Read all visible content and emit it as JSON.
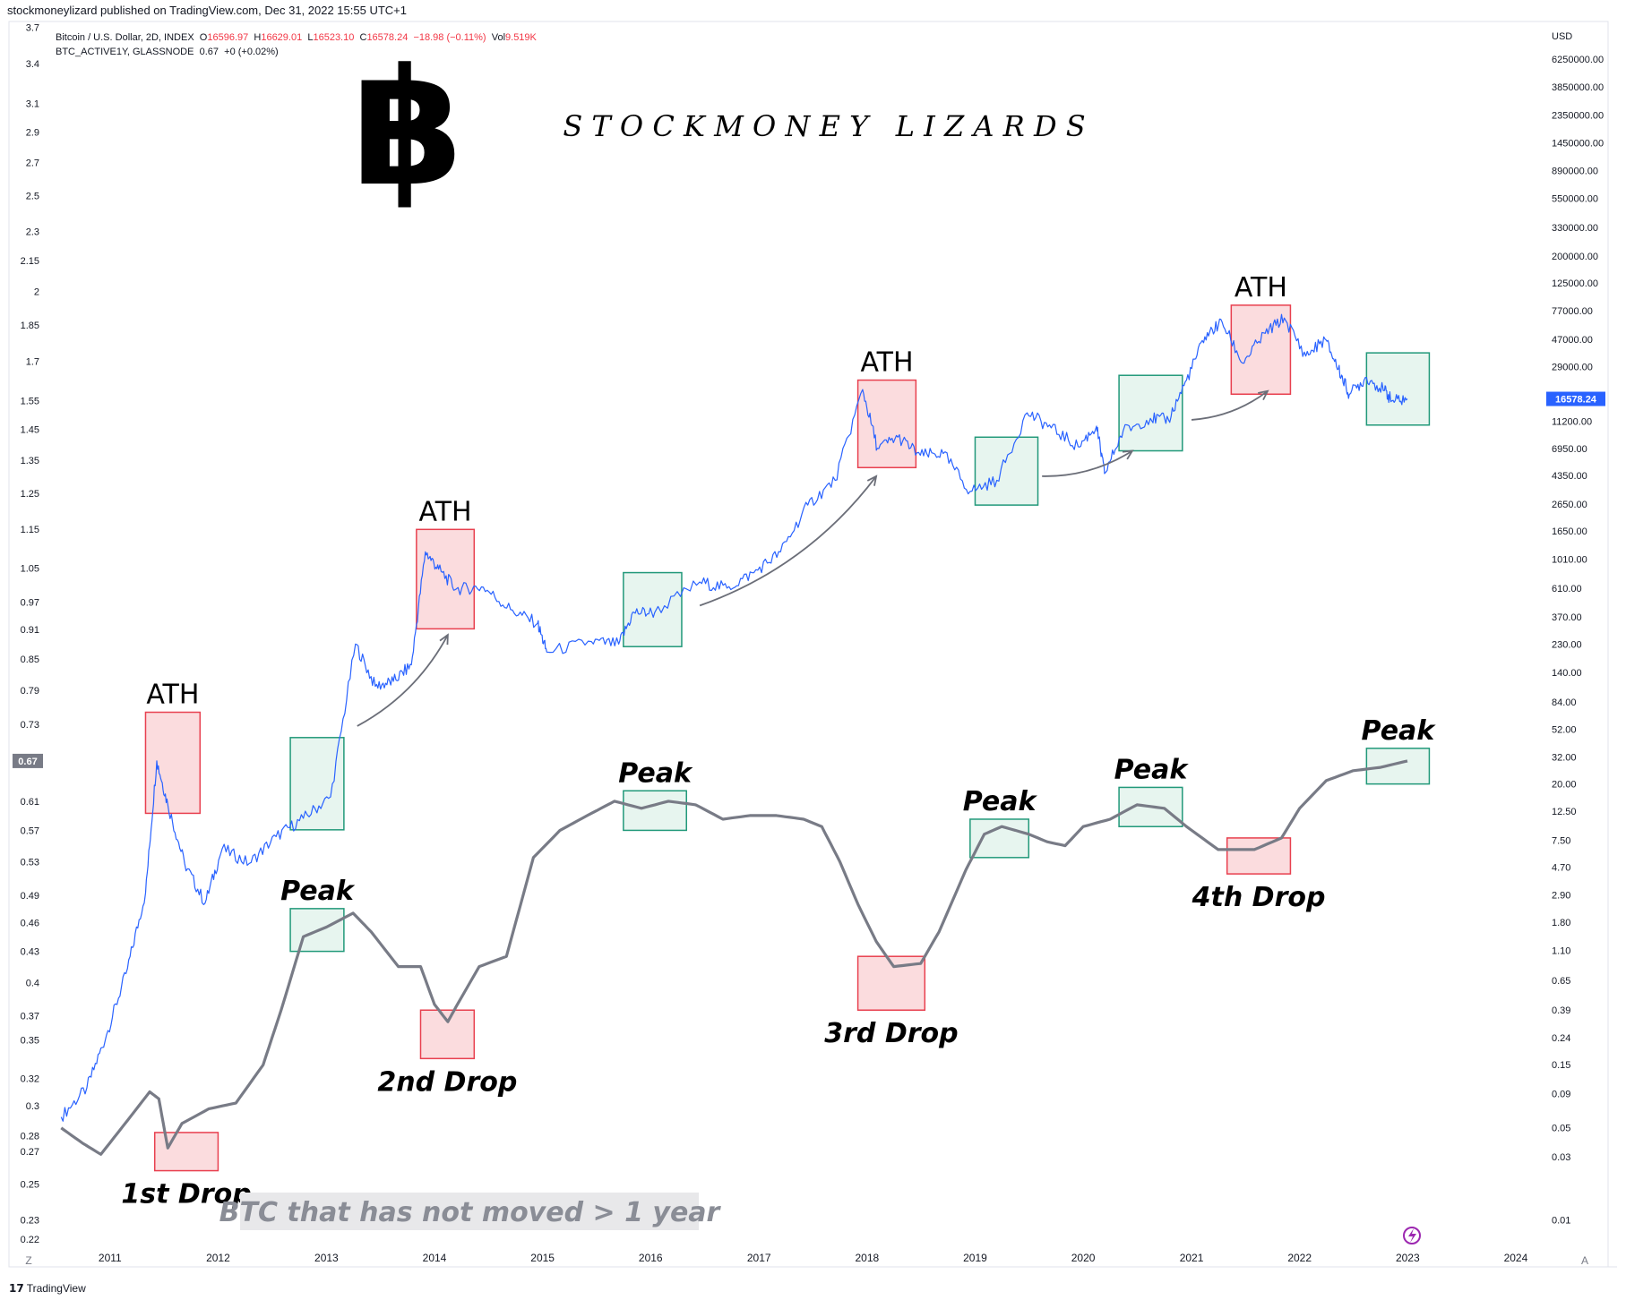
{
  "publisher_line": "stockmoneylizard published on TradingView.com, Dec 31, 2022 15:55 UTC+1",
  "legend": {
    "symbol": "Bitcoin / U.S. Dollar, 2D, INDEX",
    "ohlc": {
      "o_label": "O",
      "o": "16596.97",
      "h_label": "H",
      "h": "16629.01",
      "l_label": "L",
      "l": "16523.10",
      "c_label": "C",
      "c": "16578.24",
      "chg": "−18.98 (−0.11%)",
      "vol_label": "Vol",
      "vol": "9.519K"
    },
    "indicator": "BTC_ACTIVE1Y, GLASSNODE",
    "indicator_value": "0.67",
    "indicator_chg": "+0 (+0.02%)"
  },
  "watermark": {
    "logo_glyph": "฿",
    "text": "S T O C K M O N E Y   L I Z A R D S"
  },
  "footer": {
    "brand": "TradingView"
  },
  "colors": {
    "price": "#2962ff",
    "indicator": "#787b86",
    "red_box_fill": "#f9d0d3",
    "red_box_stroke": "#e8404f",
    "green_box_fill": "#dff2ea",
    "green_box_stroke": "#22997a",
    "price_tag": "#2962ff",
    "indicator_tag": "#787b86"
  },
  "chart_data": {
    "type": "line",
    "x_axis": {
      "type": "date",
      "ticks": [
        "2011",
        "2012",
        "2013",
        "2014",
        "2015",
        "2016",
        "2017",
        "2018",
        "2019",
        "2020",
        "2021",
        "2022",
        "2023",
        "2024"
      ]
    },
    "left_axis": {
      "scale": "log",
      "currency": "",
      "ticks": [
        "3.7",
        "3.4",
        "3.1",
        "2.9",
        "2.7",
        "2.5",
        "2.3",
        "2.15",
        "2",
        "1.85",
        "1.7",
        "1.55",
        "1.45",
        "1.35",
        "1.25",
        "1.15",
        "1.05",
        "0.97",
        "0.91",
        "0.85",
        "0.79",
        "0.73",
        "0.67",
        "0.61",
        "0.57",
        "0.53",
        "0.49",
        "0.46",
        "0.43",
        "0.4",
        "0.37",
        "0.35",
        "0.32",
        "0.3",
        "0.28",
        "0.27",
        "0.25",
        "0.23",
        "0.22"
      ],
      "current_tag": "0.67"
    },
    "right_axis": {
      "scale": "log",
      "currency": "USD",
      "ticks": [
        "6250000.00",
        "3850000.00",
        "2350000.00",
        "1450000.00",
        "890000.00",
        "550000.00",
        "330000.00",
        "200000.00",
        "125000.00",
        "77000.00",
        "47000.00",
        "29000.00",
        "11200.00",
        "6950.00",
        "4350.00",
        "2650.00",
        "1650.00",
        "1010.00",
        "610.00",
        "370.00",
        "230.00",
        "140.00",
        "84.00",
        "52.00",
        "32.00",
        "20.00",
        "12.50",
        "7.50",
        "4.70",
        "2.90",
        "1.80",
        "1.10",
        "0.65",
        "0.39",
        "0.24",
        "0.15",
        "0.09",
        "0.05",
        "0.03",
        "0.01"
      ],
      "current_tag": "16578.24"
    },
    "series": [
      {
        "axis": "right",
        "points": [
          [
            "2010-07-20",
            0.06
          ],
          [
            "2010-10-15",
            0.1
          ],
          [
            "2010-12-20",
            0.25
          ],
          [
            "2011-03-01",
            0.8
          ],
          [
            "2011-05-01",
            3.0
          ],
          [
            "2011-06-08",
            30.0
          ],
          [
            "2011-07-15",
            14.0
          ],
          [
            "2011-09-10",
            5.0
          ],
          [
            "2011-11-18",
            2.5
          ],
          [
            "2012-01-15",
            6.5
          ],
          [
            "2012-04-15",
            5.0
          ],
          [
            "2012-07-15",
            8.0
          ],
          [
            "2012-10-15",
            11.0
          ],
          [
            "2013-01-15",
            16.0
          ],
          [
            "2013-04-09",
            230.0
          ],
          [
            "2013-06-15",
            110.0
          ],
          [
            "2013-08-15",
            120.0
          ],
          [
            "2013-10-15",
            160.0
          ],
          [
            "2013-12-01",
            1150.0
          ],
          [
            "2014-01-15",
            850.0
          ],
          [
            "2014-03-15",
            600.0
          ],
          [
            "2014-06-15",
            620.0
          ],
          [
            "2014-09-15",
            420.0
          ],
          [
            "2014-12-15",
            330.0
          ],
          [
            "2015-01-15",
            200.0
          ],
          [
            "2015-06-15",
            240.0
          ],
          [
            "2015-09-15",
            230.0
          ],
          [
            "2015-11-05",
            400.0
          ],
          [
            "2016-01-15",
            400.0
          ],
          [
            "2016-06-15",
            680.0
          ],
          [
            "2016-09-15",
            610.0
          ],
          [
            "2016-12-15",
            800.0
          ],
          [
            "2017-03-15",
            1150.0
          ],
          [
            "2017-06-15",
            2600.0
          ],
          [
            "2017-09-15",
            4000.0
          ],
          [
            "2017-12-17",
            19500.0
          ],
          [
            "2018-02-05",
            7000.0
          ],
          [
            "2018-04-15",
            8500.0
          ],
          [
            "2018-06-30",
            6200.0
          ],
          [
            "2018-09-15",
            6400.0
          ],
          [
            "2018-12-15",
            3300.0
          ],
          [
            "2019-03-15",
            4000.0
          ],
          [
            "2019-06-26",
            13000.0
          ],
          [
            "2019-09-15",
            10000.0
          ],
          [
            "2019-12-15",
            7200.0
          ],
          [
            "2020-02-15",
            10300.0
          ],
          [
            "2020-03-13",
            4500.0
          ],
          [
            "2020-05-15",
            9500.0
          ],
          [
            "2020-08-15",
            11800.0
          ],
          [
            "2020-10-15",
            11500.0
          ],
          [
            "2020-12-15",
            23000.0
          ],
          [
            "2021-02-15",
            49000.0
          ],
          [
            "2021-04-14",
            63500.0
          ],
          [
            "2021-06-22",
            31000.0
          ],
          [
            "2021-09-07",
            52000.0
          ],
          [
            "2021-11-10",
            68000.0
          ],
          [
            "2022-01-22",
            35000.0
          ],
          [
            "2022-03-28",
            47000.0
          ],
          [
            "2022-05-12",
            28000.0
          ],
          [
            "2022-06-18",
            18000.0
          ],
          [
            "2022-08-15",
            24000.0
          ],
          [
            "2022-10-15",
            19200.0
          ],
          [
            "2022-11-09",
            16000.0
          ],
          [
            "2022-12-31",
            16578.24
          ]
        ]
      },
      {
        "axis": "left",
        "points": [
          [
            "2010-07-20",
            0.285
          ],
          [
            "2010-10-01",
            0.275
          ],
          [
            "2010-12-01",
            0.268
          ],
          [
            "2011-03-01",
            0.29
          ],
          [
            "2011-05-15",
            0.31
          ],
          [
            "2011-06-15",
            0.305
          ],
          [
            "2011-07-15",
            0.272
          ],
          [
            "2011-09-01",
            0.288
          ],
          [
            "2011-12-01",
            0.298
          ],
          [
            "2012-03-01",
            0.302
          ],
          [
            "2012-06-01",
            0.33
          ],
          [
            "2012-08-01",
            0.375
          ],
          [
            "2012-10-15",
            0.445
          ],
          [
            "2013-01-01",
            0.455
          ],
          [
            "2013-04-01",
            0.47
          ],
          [
            "2013-06-01",
            0.45
          ],
          [
            "2013-09-01",
            0.415
          ],
          [
            "2013-11-15",
            0.415
          ],
          [
            "2014-01-01",
            0.38
          ],
          [
            "2014-02-15",
            0.365
          ],
          [
            "2014-03-15",
            0.378
          ],
          [
            "2014-06-01",
            0.415
          ],
          [
            "2014-09-01",
            0.425
          ],
          [
            "2014-12-01",
            0.535
          ],
          [
            "2015-03-01",
            0.57
          ],
          [
            "2015-06-01",
            0.59
          ],
          [
            "2015-09-01",
            0.61
          ],
          [
            "2015-12-01",
            0.6
          ],
          [
            "2016-03-01",
            0.61
          ],
          [
            "2016-06-01",
            0.605
          ],
          [
            "2016-09-01",
            0.585
          ],
          [
            "2016-12-01",
            0.59
          ],
          [
            "2017-03-01",
            0.59
          ],
          [
            "2017-06-01",
            0.585
          ],
          [
            "2017-08-01",
            0.575
          ],
          [
            "2017-10-01",
            0.53
          ],
          [
            "2017-12-01",
            0.48
          ],
          [
            "2018-02-01",
            0.44
          ],
          [
            "2018-04-01",
            0.415
          ],
          [
            "2018-07-01",
            0.418
          ],
          [
            "2018-09-01",
            0.45
          ],
          [
            "2018-12-01",
            0.52
          ],
          [
            "2019-02-01",
            0.565
          ],
          [
            "2019-04-01",
            0.575
          ],
          [
            "2019-07-01",
            0.565
          ],
          [
            "2019-09-01",
            0.555
          ],
          [
            "2019-11-01",
            0.55
          ],
          [
            "2020-01-01",
            0.575
          ],
          [
            "2020-04-01",
            0.585
          ],
          [
            "2020-07-01",
            0.605
          ],
          [
            "2020-10-01",
            0.6
          ],
          [
            "2020-12-15",
            0.575
          ],
          [
            "2021-04-01",
            0.545
          ],
          [
            "2021-08-01",
            0.545
          ],
          [
            "2021-11-01",
            0.56
          ],
          [
            "2022-01-01",
            0.6
          ],
          [
            "2022-04-01",
            0.64
          ],
          [
            "2022-07-01",
            0.655
          ],
          [
            "2022-10-01",
            0.66
          ],
          [
            "2022-12-31",
            0.67
          ]
        ]
      }
    ],
    "annotations": [
      {
        "label": "ATH",
        "x": [
          "2011-05-01",
          "2011-11-01"
        ],
        "axis": "right",
        "y": [
          12,
          70
        ],
        "box": "red",
        "label_pos": "above"
      },
      {
        "label": "ATH",
        "x": [
          "2013-11-01",
          "2014-05-15"
        ],
        "axis": "right",
        "y": [
          300,
          1700
        ],
        "box": "red",
        "label_pos": "above"
      },
      {
        "label": "ATH",
        "x": [
          "2017-12-01",
          "2018-06-15"
        ],
        "axis": "right",
        "y": [
          5000,
          23000
        ],
        "box": "red",
        "label_pos": "above"
      },
      {
        "label": "ATH",
        "x": [
          "2021-05-15",
          "2021-12-01"
        ],
        "axis": "right",
        "y": [
          18000,
          85000
        ],
        "box": "red",
        "label_pos": "above"
      },
      {
        "label": "",
        "x": [
          "2012-09-01",
          "2013-03-01"
        ],
        "axis": "right",
        "y": [
          9,
          45
        ],
        "box": "green"
      },
      {
        "label": "",
        "x": [
          "2015-10-01",
          "2016-04-15"
        ],
        "axis": "right",
        "y": [
          220,
          800
        ],
        "box": "green"
      },
      {
        "label": "",
        "x": [
          "2019-01-01",
          "2019-08-01"
        ],
        "axis": "right",
        "y": [
          2600,
          8500
        ],
        "box": "green"
      },
      {
        "label": "",
        "x": [
          "2020-05-01",
          "2020-12-01"
        ],
        "axis": "right",
        "y": [
          6700,
          25000
        ],
        "box": "green"
      },
      {
        "label": "",
        "x": [
          "2022-08-15",
          "2023-03-15"
        ],
        "axis": "right",
        "y": [
          10500,
          37000
        ],
        "box": "green"
      },
      {
        "label": "1st Drop",
        "x": [
          "2011-06-01",
          "2012-01-01"
        ],
        "axis": "left",
        "y": [
          0.258,
          0.282
        ],
        "box": "red",
        "label_pos": "below"
      },
      {
        "label": "2nd Drop",
        "x": [
          "2013-11-15",
          "2014-05-15"
        ],
        "axis": "left",
        "y": [
          0.335,
          0.375
        ],
        "box": "red",
        "label_pos": "below"
      },
      {
        "label": "3rd Drop",
        "x": [
          "2017-12-01",
          "2018-07-15"
        ],
        "axis": "left",
        "y": [
          0.375,
          0.425
        ],
        "box": "red",
        "label_pos": "below"
      },
      {
        "label": "4th Drop",
        "x": [
          "2021-05-01",
          "2021-12-01"
        ],
        "axis": "left",
        "y": [
          0.515,
          0.56
        ],
        "box": "red",
        "label_pos": "below"
      },
      {
        "label": "Peak",
        "x": [
          "2012-09-01",
          "2013-03-01"
        ],
        "axis": "left",
        "y": [
          0.43,
          0.475
        ],
        "box": "green",
        "label_pos": "above"
      },
      {
        "label": "Peak",
        "x": [
          "2015-10-01",
          "2016-05-01"
        ],
        "axis": "left",
        "y": [
          0.57,
          0.625
        ],
        "box": "green",
        "label_pos": "above"
      },
      {
        "label": "Peak",
        "x": [
          "2018-12-15",
          "2019-07-01"
        ],
        "axis": "left",
        "y": [
          0.535,
          0.585
        ],
        "box": "green",
        "label_pos": "above"
      },
      {
        "label": "Peak",
        "x": [
          "2020-05-01",
          "2020-12-01"
        ],
        "axis": "left",
        "y": [
          0.575,
          0.63
        ],
        "box": "green",
        "label_pos": "above"
      },
      {
        "label": "Peak",
        "x": [
          "2022-08-15",
          "2023-03-15"
        ],
        "axis": "left",
        "y": [
          0.635,
          0.69
        ],
        "box": "green",
        "label_pos": "above"
      }
    ],
    "arrows": [
      {
        "from": [
          "2013-04-15",
          55
        ],
        "to": [
          "2014-02-15",
          270
        ]
      },
      {
        "from": [
          "2016-06-15",
          450
        ],
        "to": [
          "2018-02-01",
          4300
        ]
      },
      {
        "from": [
          "2019-08-15",
          4300
        ],
        "to": [
          "2020-06-15",
          6700
        ]
      },
      {
        "from": [
          "2021-01-01",
          11500
        ],
        "to": [
          "2021-09-15",
          19000
        ]
      }
    ],
    "caption": "BTC that has not moved > 1 year"
  }
}
